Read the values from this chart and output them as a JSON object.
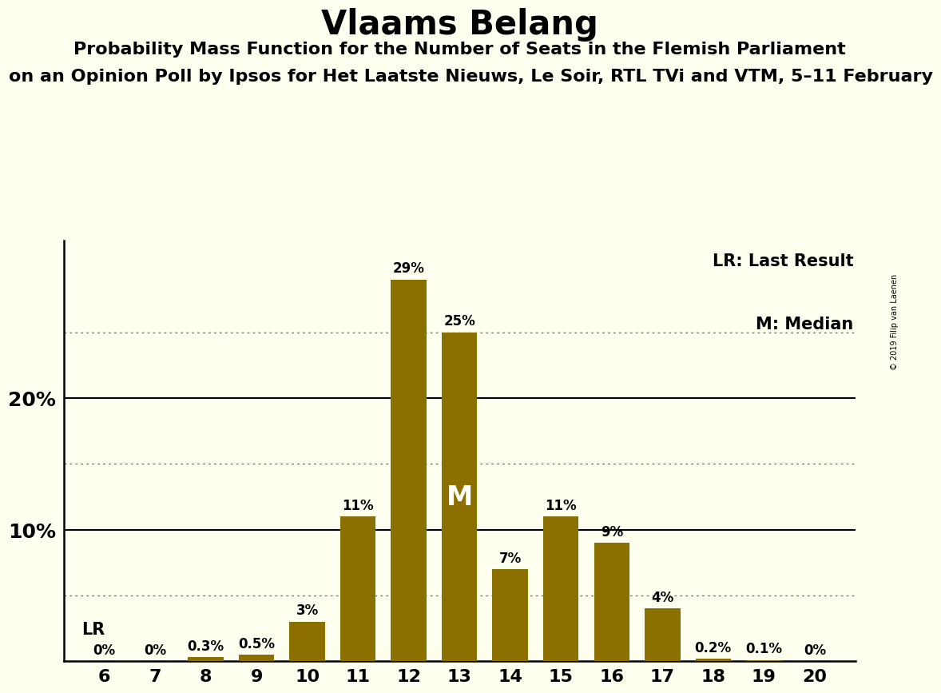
{
  "title": "Vlaams Belang",
  "subtitle1": "Probability Mass Function for the Number of Seats in the Flemish Parliament",
  "subtitle2": "on an Opinion Poll by Ipsos for Het Laatste Nieuws, Le Soir, RTL TVi and VTM, 5–11 February",
  "copyright": "© 2019 Filip van Laenen",
  "seats": [
    6,
    7,
    8,
    9,
    10,
    11,
    12,
    13,
    14,
    15,
    16,
    17,
    18,
    19,
    20
  ],
  "probabilities": [
    0.0,
    0.0,
    0.3,
    0.5,
    3.0,
    11.0,
    29.0,
    25.0,
    7.0,
    11.0,
    9.0,
    4.0,
    0.2,
    0.1,
    0.0
  ],
  "bar_color": "#8B7000",
  "background_color": "#FFFFF0",
  "label_color": "#000000",
  "median_seat": 13,
  "lr_seat": 6,
  "legend_lr": "LR: Last Result",
  "legend_m": "M: Median",
  "ylim": [
    0,
    32
  ],
  "major_yticks": [
    10,
    20
  ],
  "dotted_yticks": [
    5,
    15,
    25
  ],
  "bar_width": 0.7,
  "title_fontsize": 30,
  "subtitle_fontsize": 16,
  "label_fontsize": 12,
  "ytick_fontsize": 18,
  "xtick_fontsize": 16,
  "legend_fontsize": 15,
  "lr_fontsize": 15,
  "median_label_fontsize": 24
}
